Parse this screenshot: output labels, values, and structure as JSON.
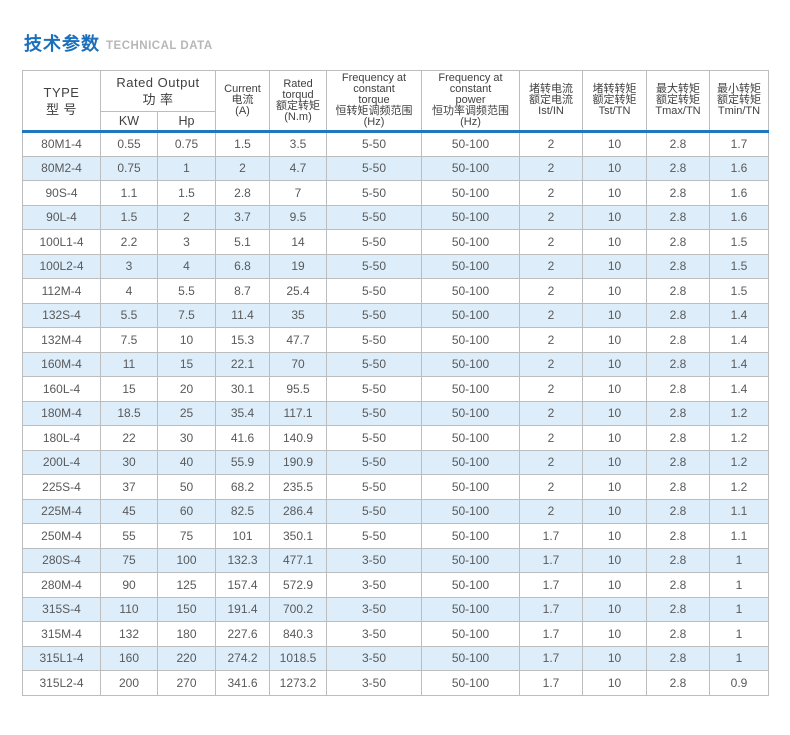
{
  "page": {
    "title_cn": "技术参数",
    "title_en": "TECHNICAL DATA"
  },
  "colors": {
    "accent_blue": "#1a6fbd",
    "header_divider_blue": "#1f78bf",
    "row_alt_bg": "#ddeefa",
    "border_gray": "#bcbdbf",
    "text_gray": "#58595b",
    "title_en_gray": "#b7b7b7"
  },
  "table": {
    "columns": [
      {
        "id": "type",
        "lines": [
          "TYPE",
          "型 号"
        ]
      },
      {
        "id": "rated-output",
        "lines": [
          "Rated Output",
          "功 率"
        ],
        "sub": [
          "KW",
          "Hp"
        ]
      },
      {
        "id": "current",
        "lines": [
          "Current",
          "电流",
          "(A)"
        ]
      },
      {
        "id": "rated-torque",
        "lines": [
          "Rated",
          "torqud",
          "额定转矩",
          "(N.m)"
        ]
      },
      {
        "id": "freq-constant-torque",
        "lines": [
          "Frequency at",
          "constant",
          "torque",
          "恒转矩调频范围",
          "(Hz)"
        ]
      },
      {
        "id": "freq-constant-power",
        "lines": [
          "Frequency at",
          "constant",
          "power",
          "恒功率调频范围",
          "(Hz)"
        ]
      },
      {
        "id": "ist-in",
        "lines": [
          "堵转电流",
          "额定电流",
          "Ist/IN"
        ]
      },
      {
        "id": "tst-tn",
        "lines": [
          "堵转转矩",
          "额定转矩",
          "Tst/TN"
        ]
      },
      {
        "id": "tmax-tn",
        "lines": [
          "最大转矩",
          "额定转矩",
          "Tmax/TN"
        ]
      },
      {
        "id": "tmin-tn",
        "lines": [
          "最小转矩",
          "额定转矩",
          "Tmin/TN"
        ]
      }
    ],
    "rows": [
      [
        "80M1-4",
        "0.55",
        "0.75",
        "1.5",
        "3.5",
        "5-50",
        "50-100",
        "2",
        "10",
        "2.8",
        "1.7"
      ],
      [
        "80M2-4",
        "0.75",
        "1",
        "2",
        "4.7",
        "5-50",
        "50-100",
        "2",
        "10",
        "2.8",
        "1.6"
      ],
      [
        "90S-4",
        "1.1",
        "1.5",
        "2.8",
        "7",
        "5-50",
        "50-100",
        "2",
        "10",
        "2.8",
        "1.6"
      ],
      [
        "90L-4",
        "1.5",
        "2",
        "3.7",
        "9.5",
        "5-50",
        "50-100",
        "2",
        "10",
        "2.8",
        "1.6"
      ],
      [
        "100L1-4",
        "2.2",
        "3",
        "5.1",
        "14",
        "5-50",
        "50-100",
        "2",
        "10",
        "2.8",
        "1.5"
      ],
      [
        "100L2-4",
        "3",
        "4",
        "6.8",
        "19",
        "5-50",
        "50-100",
        "2",
        "10",
        "2.8",
        "1.5"
      ],
      [
        "112M-4",
        "4",
        "5.5",
        "8.7",
        "25.4",
        "5-50",
        "50-100",
        "2",
        "10",
        "2.8",
        "1.5"
      ],
      [
        "132S-4",
        "5.5",
        "7.5",
        "11.4",
        "35",
        "5-50",
        "50-100",
        "2",
        "10",
        "2.8",
        "1.4"
      ],
      [
        "132M-4",
        "7.5",
        "10",
        "15.3",
        "47.7",
        "5-50",
        "50-100",
        "2",
        "10",
        "2.8",
        "1.4"
      ],
      [
        "160M-4",
        "11",
        "15",
        "22.1",
        "70",
        "5-50",
        "50-100",
        "2",
        "10",
        "2.8",
        "1.4"
      ],
      [
        "160L-4",
        "15",
        "20",
        "30.1",
        "95.5",
        "5-50",
        "50-100",
        "2",
        "10",
        "2.8",
        "1.4"
      ],
      [
        "180M-4",
        "18.5",
        "25",
        "35.4",
        "117.1",
        "5-50",
        "50-100",
        "2",
        "10",
        "2.8",
        "1.2"
      ],
      [
        "180L-4",
        "22",
        "30",
        "41.6",
        "140.9",
        "5-50",
        "50-100",
        "2",
        "10",
        "2.8",
        "1.2"
      ],
      [
        "200L-4",
        "30",
        "40",
        "55.9",
        "190.9",
        "5-50",
        "50-100",
        "2",
        "10",
        "2.8",
        "1.2"
      ],
      [
        "225S-4",
        "37",
        "50",
        "68.2",
        "235.5",
        "5-50",
        "50-100",
        "2",
        "10",
        "2.8",
        "1.2"
      ],
      [
        "225M-4",
        "45",
        "60",
        "82.5",
        "286.4",
        "5-50",
        "50-100",
        "2",
        "10",
        "2.8",
        "1.1"
      ],
      [
        "250M-4",
        "55",
        "75",
        "101",
        "350.1",
        "5-50",
        "50-100",
        "1.7",
        "10",
        "2.8",
        "1.1"
      ],
      [
        "280S-4",
        "75",
        "100",
        "132.3",
        "477.1",
        "3-50",
        "50-100",
        "1.7",
        "10",
        "2.8",
        "1"
      ],
      [
        "280M-4",
        "90",
        "125",
        "157.4",
        "572.9",
        "3-50",
        "50-100",
        "1.7",
        "10",
        "2.8",
        "1"
      ],
      [
        "315S-4",
        "110",
        "150",
        "191.4",
        "700.2",
        "3-50",
        "50-100",
        "1.7",
        "10",
        "2.8",
        "1"
      ],
      [
        "315M-4",
        "132",
        "180",
        "227.6",
        "840.3",
        "3-50",
        "50-100",
        "1.7",
        "10",
        "2.8",
        "1"
      ],
      [
        "315L1-4",
        "160",
        "220",
        "274.2",
        "1018.5",
        "3-50",
        "50-100",
        "1.7",
        "10",
        "2.8",
        "1"
      ],
      [
        "315L2-4",
        "200",
        "270",
        "341.6",
        "1273.2",
        "3-50",
        "50-100",
        "1.7",
        "10",
        "2.8",
        "0.9"
      ]
    ]
  }
}
